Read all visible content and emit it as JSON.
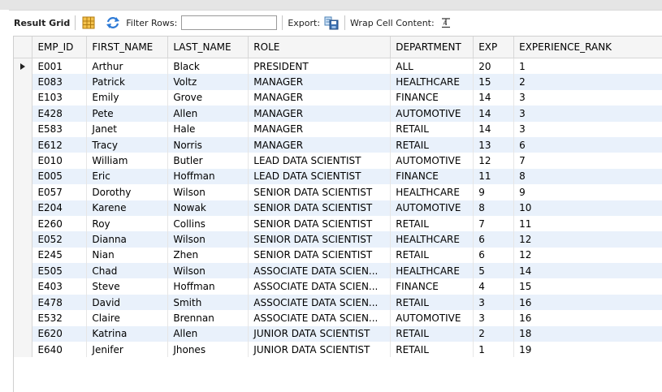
{
  "toolbar": {
    "result_grid": "Result Grid",
    "filter_rows": "Filter Rows:",
    "filter_value": "",
    "export": "Export:",
    "wrap_cell_content": "Wrap Cell Content:"
  },
  "columns": [
    "EMP_ID",
    "FIRST_NAME",
    "LAST_NAME",
    "ROLE",
    "DEPARTMENT",
    "EXP",
    "EXPERIENCE_RANK"
  ],
  "rows": [
    [
      "E001",
      "Arthur",
      "Black",
      "PRESIDENT",
      "ALL",
      "20",
      "1"
    ],
    [
      "E083",
      "Patrick",
      "Voltz",
      "MANAGER",
      "HEALTHCARE",
      "15",
      "2"
    ],
    [
      "E103",
      "Emily",
      "Grove",
      "MANAGER",
      "FINANCE",
      "14",
      "3"
    ],
    [
      "E428",
      "Pete",
      "Allen",
      "MANAGER",
      "AUTOMOTIVE",
      "14",
      "3"
    ],
    [
      "E583",
      "Janet",
      "Hale",
      "MANAGER",
      "RETAIL",
      "14",
      "3"
    ],
    [
      "E612",
      "Tracy",
      "Norris",
      "MANAGER",
      "RETAIL",
      "13",
      "6"
    ],
    [
      "E010",
      "William",
      "Butler",
      "LEAD DATA SCIENTIST",
      "AUTOMOTIVE",
      "12",
      "7"
    ],
    [
      "E005",
      "Eric",
      "Hoffman",
      "LEAD DATA SCIENTIST",
      "FINANCE",
      "11",
      "8"
    ],
    [
      "E057",
      "Dorothy",
      "Wilson",
      "SENIOR DATA SCIENTIST",
      "HEALTHCARE",
      "9",
      "9"
    ],
    [
      "E204",
      "Karene",
      "Nowak",
      "SENIOR DATA SCIENTIST",
      "AUTOMOTIVE",
      "8",
      "10"
    ],
    [
      "E260",
      "Roy",
      "Collins",
      "SENIOR DATA SCIENTIST",
      "RETAIL",
      "7",
      "11"
    ],
    [
      "E052",
      "Dianna",
      "Wilson",
      "SENIOR DATA SCIENTIST",
      "HEALTHCARE",
      "6",
      "12"
    ],
    [
      "E245",
      "Nian",
      "Zhen",
      "SENIOR DATA SCIENTIST",
      "RETAIL",
      "6",
      "12"
    ],
    [
      "E505",
      "Chad",
      "Wilson",
      "ASSOCIATE DATA SCIEN...",
      "HEALTHCARE",
      "5",
      "14"
    ],
    [
      "E403",
      "Steve",
      "Hoffman",
      "ASSOCIATE DATA SCIEN...",
      "FINANCE",
      "4",
      "15"
    ],
    [
      "E478",
      "David",
      "Smith",
      "ASSOCIATE DATA SCIEN...",
      "RETAIL",
      "3",
      "16"
    ],
    [
      "E532",
      "Claire",
      "Brennan",
      "ASSOCIATE DATA SCIEN...",
      "AUTOMOTIVE",
      "3",
      "16"
    ],
    [
      "E620",
      "Katrina",
      "Allen",
      "JUNIOR DATA SCIENTIST",
      "RETAIL",
      "2",
      "18"
    ],
    [
      "E640",
      "Jenifer",
      "Jhones",
      "JUNIOR DATA SCIENTIST",
      "RETAIL",
      "1",
      "19"
    ]
  ],
  "icons": {
    "grid": "grid-layout-icon",
    "refresh": "refresh-arrows-icon",
    "export": "export-icon",
    "wrap": "wrap-text-icon"
  },
  "colors": {
    "row_alt": "#e9f1fb",
    "header_bg": "#f5f5f5",
    "accent_blue": "#2f7bd6",
    "accent_orange": "#f0a020"
  }
}
